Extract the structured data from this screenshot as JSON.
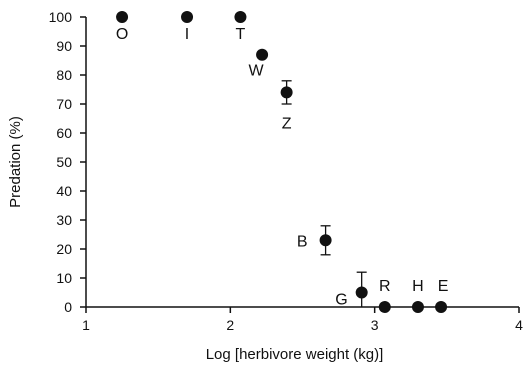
{
  "chart_data": {
    "type": "scatter",
    "xlabel": "Log [herbivore weight (kg)]",
    "ylabel": "Predation (%)",
    "xlim": [
      1,
      4
    ],
    "ylim": [
      0,
      100
    ],
    "x_ticks": [
      "1",
      "2",
      "3",
      "4"
    ],
    "y_ticks": [
      "0",
      "10",
      "20",
      "30",
      "40",
      "50",
      "60",
      "70",
      "80",
      "90",
      "100"
    ],
    "grid": false,
    "legend": "none",
    "marker_color": "#111111",
    "points": [
      {
        "label": "O",
        "x": 1.25,
        "y": 100
      },
      {
        "label": "I",
        "x": 1.7,
        "y": 100
      },
      {
        "label": "T",
        "x": 2.07,
        "y": 100
      },
      {
        "label": "W",
        "x": 2.22,
        "y": 87
      },
      {
        "label": "Z",
        "x": 2.39,
        "y": 74,
        "err": 4
      },
      {
        "label": "B",
        "x": 2.66,
        "y": 23,
        "err": 5
      },
      {
        "label": "G",
        "x": 2.91,
        "y": 5,
        "err": 7
      },
      {
        "label": "R",
        "x": 3.07,
        "y": 0
      },
      {
        "label": "H",
        "x": 3.3,
        "y": 0
      },
      {
        "label": "E",
        "x": 3.46,
        "y": 0
      }
    ]
  }
}
